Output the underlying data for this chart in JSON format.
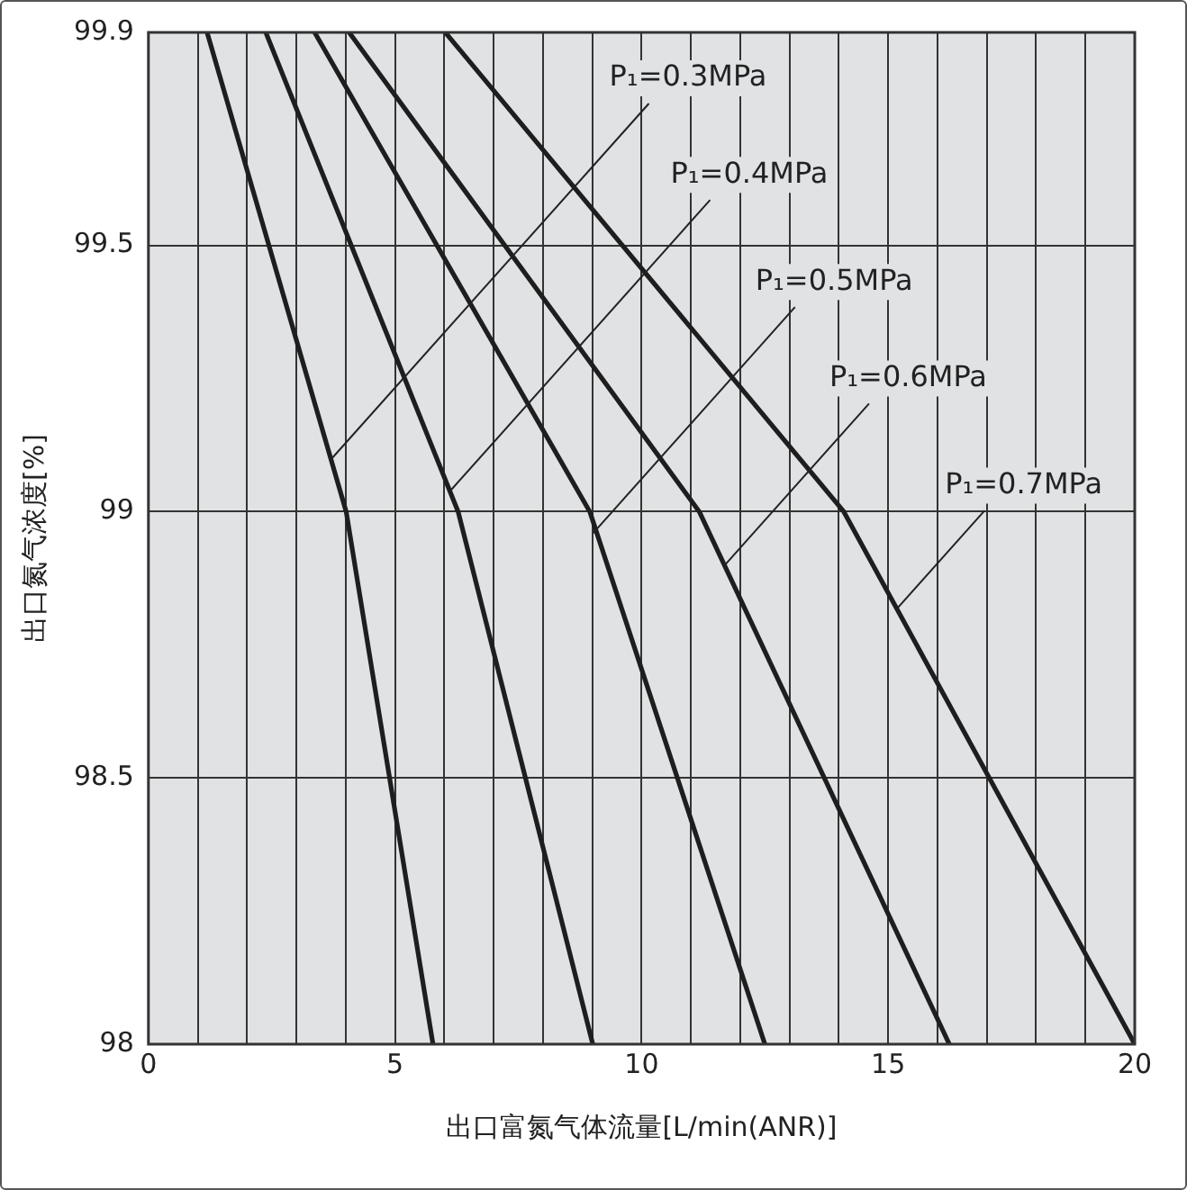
{
  "chart_data": {
    "type": "line",
    "xlabel": "出口富氮气体流量[L/min(ANR)]",
    "ylabel": "出口氮气浓度[%]",
    "xlim": [
      0,
      20
    ],
    "ylim": [
      98,
      99.9
    ],
    "xticks": [
      0,
      {
        "value": 1,
        "label": null
      },
      {
        "value": 2,
        "label": null
      },
      {
        "value": 3,
        "label": null
      },
      {
        "value": 4,
        "label": null
      },
      5,
      {
        "value": 6,
        "label": null
      },
      {
        "value": 7,
        "label": null
      },
      {
        "value": 8,
        "label": null
      },
      {
        "value": 9,
        "label": null
      },
      10,
      {
        "value": 11,
        "label": null
      },
      {
        "value": 12,
        "label": null
      },
      {
        "value": 13,
        "label": null
      },
      {
        "value": 14,
        "label": null
      },
      15,
      {
        "value": 16,
        "label": null
      },
      {
        "value": 17,
        "label": null
      },
      {
        "value": 18,
        "label": null
      },
      {
        "value": 19,
        "label": null
      },
      20
    ],
    "yticks": [
      98,
      98.5,
      99,
      99.5,
      99.9
    ],
    "grid": true,
    "legend": false,
    "marker": "none",
    "line_style": "solid",
    "series": [
      {
        "color": "#1e1e1e",
        "x": [
          1.19,
          4.01,
          5.77
        ],
        "values": [
          99.9,
          99,
          98
        ]
      },
      {
        "color": "#1e1e1e",
        "x": [
          2.38,
          6.28,
          9.01
        ],
        "values": [
          99.9,
          99,
          98
        ]
      },
      {
        "color": "#1e1e1e",
        "x": [
          3.37,
          8.95,
          12.5
        ],
        "values": [
          99.9,
          99,
          98
        ]
      },
      {
        "color": "#1e1e1e",
        "x": [
          4.07,
          11.17,
          16.24
        ],
        "values": [
          99.9,
          99,
          98
        ]
      },
      {
        "color": "#1e1e1e",
        "x": [
          6.02,
          14.1,
          20
        ],
        "values": [
          99.9,
          99,
          98
        ]
      }
    ],
    "annotations": [
      {
        "text": "P₁=0.3MPa",
        "x": 3.72,
        "y": 99.1
      },
      {
        "text": "P₁=0.4MPa",
        "x": 6.13,
        "y": 99.04
      },
      {
        "text": "P₁=0.5MPa",
        "x": 9.02,
        "y": 98.96
      },
      {
        "text": "P₁=0.6MPa",
        "x": 11.69,
        "y": 98.9
      },
      {
        "text": "P₁=0.7MPa",
        "x": 15.2,
        "y": 98.82
      }
    ]
  }
}
